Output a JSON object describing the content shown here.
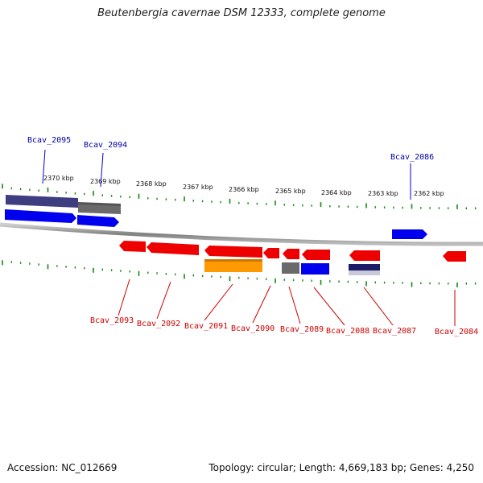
{
  "title": "Beutenbergia cavernae DSM 12333, complete genome",
  "footer": {
    "accession": "Accession: NC_012669",
    "summary": "Topology: circular; Length: 4,669,183 bp; Genes: 4,250"
  },
  "colors": {
    "red_gene": "#ee0000",
    "blue_gene": "#0000ee",
    "gray_gene": "#666666",
    "orange_gene": "#ff9900",
    "navy_gene": "#222266",
    "tick": "#118811",
    "top_label": "#0000aa",
    "bottom_label": "#cc0000",
    "backbone": "#888888"
  },
  "scale": {
    "ticks": [
      "2370 kbp",
      "2369 kbp",
      "2368 kbp",
      "2367 kbp",
      "2366 kbp",
      "2365 kbp",
      "2364 kbp",
      "2363 kbp",
      "2362 kbp"
    ]
  },
  "genes": {
    "top": [
      "Bcav_2095",
      "Bcav_2094",
      "Bcav_2086"
    ],
    "bottom": [
      "Bcav_2093",
      "Bcav_2092",
      "Bcav_2091",
      "Bcav_2090",
      "Bcav_2089",
      "Bcav_2088",
      "Bcav_2087",
      "Bcav_2084"
    ]
  }
}
